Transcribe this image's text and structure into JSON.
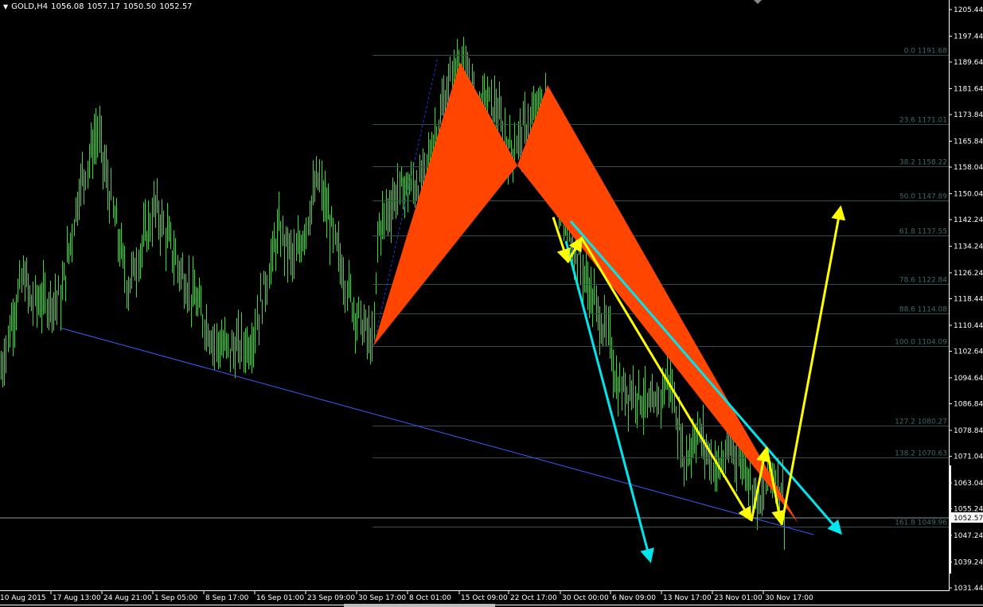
{
  "header": {
    "menu_icon": "triangle-down-icon",
    "symbol": "GOLD,H4",
    "open": "1056.08",
    "high": "1057.17",
    "low": "1050.50",
    "close": "1052.57"
  },
  "colors": {
    "background": "#000000",
    "bars": "#32dc32",
    "fibonacci": "#2f4f4f",
    "pattern_fill": "#ff4500",
    "trendline": "#3d5cff",
    "cyan_arrows": "#00e5ee",
    "yellow_arrows": "#ffff00",
    "axis": "#ffffff"
  },
  "chart_data": {
    "type": "ohlc",
    "instrument": "GOLD",
    "timeframe": "H4",
    "y_axis": {
      "range": [
        1031.44,
        1205.44
      ],
      "ticks": [
        "1205.44",
        "1197.44",
        "1189.64",
        "1181.64",
        "1173.84",
        "1165.84",
        "1158.04",
        "1150.04",
        "1142.24",
        "1134.24",
        "1126.24",
        "1118.44",
        "1110.44",
        "1102.64",
        "1094.64",
        "1086.84",
        "1078.84",
        "1071.04",
        "1063.04",
        "1055.24",
        "1047.24",
        "1039.24",
        "1031.44"
      ]
    },
    "x_axis": {
      "ticks": [
        {
          "label": "10 Aug 2015",
          "date": "2015-08-10T00:00"
        },
        {
          "label": "17 Aug 13:00",
          "date": "2015-08-17T13:00"
        },
        {
          "label": "24 Aug 21:00",
          "date": "2015-08-24T21:00"
        },
        {
          "label": "1 Sep 05:00",
          "date": "2015-09-01T05:00"
        },
        {
          "label": "8 Sep 17:00",
          "date": "2015-09-08T17:00"
        },
        {
          "label": "16 Sep 01:00",
          "date": "2015-09-16T01:00"
        },
        {
          "label": "23 Sep 09:00",
          "date": "2015-09-23T09:00"
        },
        {
          "label": "30 Sep 17:00",
          "date": "2015-09-30T17:00"
        },
        {
          "label": "8 Oct 01:00",
          "date": "2015-10-08T01:00"
        },
        {
          "label": "15 Oct 09:00",
          "date": "2015-10-15T09:00"
        },
        {
          "label": "22 Oct 17:00",
          "date": "2015-10-22T17:00"
        },
        {
          "label": "30 Oct 00:00",
          "date": "2015-10-30T00:00"
        },
        {
          "label": "6 Nov 09:00",
          "date": "2015-11-06T09:00"
        },
        {
          "label": "13 Nov 17:00",
          "date": "2015-11-13T17:00"
        },
        {
          "label": "23 Nov 01:00",
          "date": "2015-11-23T01:00"
        },
        {
          "label": "30 Nov 17:00",
          "date": "2015-11-30T17:00"
        }
      ]
    },
    "current_price": "1052.57",
    "price_path": [
      [
        "2015-08-10T00:00",
        1095.8
      ],
      [
        "2015-08-11T18:00",
        1112.6
      ],
      [
        "2015-08-13T12:00",
        1125.7
      ],
      [
        "2015-08-14T12:00",
        1117.4
      ],
      [
        "2015-08-18T23:00",
        1118.5
      ],
      [
        "2015-08-21T12:00",
        1150.9
      ],
      [
        "2015-08-24T05:00",
        1168.8
      ],
      [
        "2015-08-26T07:00",
        1146.1
      ],
      [
        "2015-08-28T14:00",
        1122.1
      ],
      [
        "2015-09-01T13:00",
        1146.1
      ],
      [
        "2015-09-04T16:00",
        1129.3
      ],
      [
        "2015-09-10T07:00",
        1105.4
      ],
      [
        "2015-09-12T15:00",
        1103.0
      ],
      [
        "2015-09-15T12:00",
        1105.4
      ],
      [
        "2015-09-19T11:00",
        1138.9
      ],
      [
        "2015-09-21T19:00",
        1129.3
      ],
      [
        "2015-09-25T04:00",
        1154.4
      ],
      [
        "2015-09-27T08:00",
        1136.5
      ],
      [
        "2015-09-30T09:00",
        1115.0
      ],
      [
        "2015-10-03T03:00",
        1104.1
      ],
      [
        "2015-10-03T17:00",
        1138.9
      ],
      [
        "2015-10-06T14:00",
        1150.9
      ],
      [
        "2015-10-10T02:00",
        1153.3
      ],
      [
        "2015-10-13T11:00",
        1179.6
      ],
      [
        "2015-10-15T03:00",
        1189.6
      ],
      [
        "2015-10-18T02:00",
        1177.2
      ],
      [
        "2015-10-20T09:00",
        1177.2
      ],
      [
        "2015-10-22T20:00",
        1162.8
      ],
      [
        "2015-10-25T03:00",
        1170.0
      ],
      [
        "2015-10-27T23:00",
        1178.0
      ],
      [
        "2015-10-29T16:00",
        1148.5
      ],
      [
        "2015-11-01T21:00",
        1129.3
      ],
      [
        "2015-11-04T17:00",
        1112.6
      ],
      [
        "2015-11-06T07:00",
        1105.4
      ],
      [
        "2015-11-07T07:00",
        1091.0
      ],
      [
        "2015-11-10T03:00",
        1091.0
      ],
      [
        "2015-11-12T10:00",
        1083.8
      ],
      [
        "2015-11-15T00:00",
        1095.8
      ],
      [
        "2015-11-17T22:00",
        1069.5
      ],
      [
        "2015-11-20T02:00",
        1079.0
      ],
      [
        "2015-11-23T15:00",
        1067.0
      ],
      [
        "2015-11-26T00:00",
        1074.3
      ],
      [
        "2015-11-28T10:00",
        1067.0
      ],
      [
        "2015-11-30T05:00",
        1055.1
      ],
      [
        "2015-12-01T14:00",
        1067.0
      ],
      [
        "2015-12-03T09:00",
        1062.3
      ],
      [
        "2015-12-04T00:00",
        1052.57
      ]
    ],
    "fibonacci_levels": [
      {
        "ratio": "0.0",
        "price": "1191.68"
      },
      {
        "ratio": "23.6",
        "price": "1171.01"
      },
      {
        "ratio": "38.2",
        "price": "1158.22"
      },
      {
        "ratio": "50.0",
        "price": "1147.89"
      },
      {
        "ratio": "61.8",
        "price": "1137.55"
      },
      {
        "ratio": "78.6",
        "price": "1122.84"
      },
      {
        "ratio": "88.6",
        "price": "1114.08"
      },
      {
        "ratio": "100.0",
        "price": "1104.09"
      },
      {
        "ratio": "127.2",
        "price": "1080.27"
      },
      {
        "ratio": "138.2",
        "price": "1070.63"
      },
      {
        "ratio": "161.8",
        "price": "1049.96"
      }
    ],
    "grid": false
  }
}
